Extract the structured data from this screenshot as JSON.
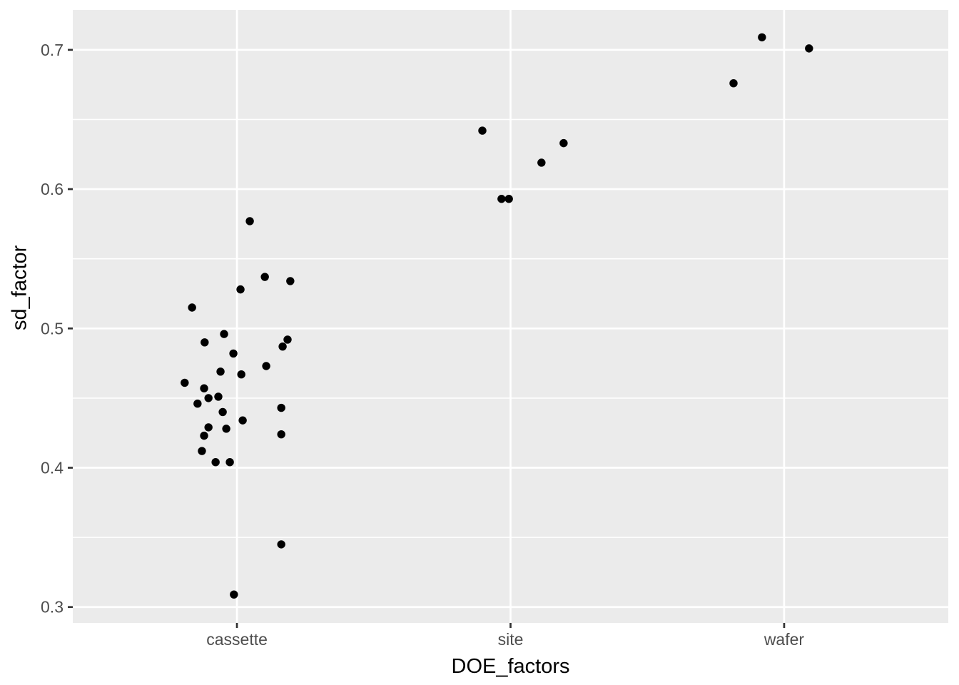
{
  "chart_data": {
    "type": "scatter",
    "title": "",
    "xlabel": "DOE_factors",
    "ylabel": "sd_factor",
    "categories": [
      "cassette",
      "site",
      "wafer"
    ],
    "category_positions": [
      1,
      2,
      3
    ],
    "x_tick_labels": [
      "cassette",
      "site",
      "wafer"
    ],
    "y_tick_labels": [
      "0.3",
      "0.4",
      "0.5",
      "0.6",
      "0.7"
    ],
    "y_ticks": [
      0.3,
      0.4,
      0.5,
      0.6,
      0.7
    ],
    "y_minor_ticks": [
      0.35,
      0.45,
      0.55,
      0.65
    ],
    "xlim": [
      0.4,
      3.6
    ],
    "ylim": [
      0.2886,
      0.7286
    ],
    "grid": true,
    "legend": "none",
    "points": [
      {
        "factor": "cassette",
        "x": 1.047,
        "sd_factor": 0.577
      },
      {
        "factor": "cassette",
        "x": 1.102,
        "sd_factor": 0.537
      },
      {
        "factor": "cassette",
        "x": 1.195,
        "sd_factor": 0.534
      },
      {
        "factor": "cassette",
        "x": 1.013,
        "sd_factor": 0.528
      },
      {
        "factor": "cassette",
        "x": 0.836,
        "sd_factor": 0.515
      },
      {
        "factor": "cassette",
        "x": 0.953,
        "sd_factor": 0.496
      },
      {
        "factor": "cassette",
        "x": 0.882,
        "sd_factor": 0.49
      },
      {
        "factor": "cassette",
        "x": 1.185,
        "sd_factor": 0.492
      },
      {
        "factor": "cassette",
        "x": 1.167,
        "sd_factor": 0.487
      },
      {
        "factor": "cassette",
        "x": 0.987,
        "sd_factor": 0.482
      },
      {
        "factor": "cassette",
        "x": 1.107,
        "sd_factor": 0.473
      },
      {
        "factor": "cassette",
        "x": 0.94,
        "sd_factor": 0.469
      },
      {
        "factor": "cassette",
        "x": 1.016,
        "sd_factor": 0.467
      },
      {
        "factor": "cassette",
        "x": 0.809,
        "sd_factor": 0.461
      },
      {
        "factor": "cassette",
        "x": 0.88,
        "sd_factor": 0.457
      },
      {
        "factor": "cassette",
        "x": 0.896,
        "sd_factor": 0.45
      },
      {
        "factor": "cassette",
        "x": 0.932,
        "sd_factor": 0.451
      },
      {
        "factor": "cassette",
        "x": 0.856,
        "sd_factor": 0.446
      },
      {
        "factor": "cassette",
        "x": 1.162,
        "sd_factor": 0.443
      },
      {
        "factor": "cassette",
        "x": 0.948,
        "sd_factor": 0.44
      },
      {
        "factor": "cassette",
        "x": 1.021,
        "sd_factor": 0.434
      },
      {
        "factor": "cassette",
        "x": 0.896,
        "sd_factor": 0.429
      },
      {
        "factor": "cassette",
        "x": 0.961,
        "sd_factor": 0.428
      },
      {
        "factor": "cassette",
        "x": 0.88,
        "sd_factor": 0.423
      },
      {
        "factor": "cassette",
        "x": 1.162,
        "sd_factor": 0.424
      },
      {
        "factor": "cassette",
        "x": 0.872,
        "sd_factor": 0.412
      },
      {
        "factor": "cassette",
        "x": 0.922,
        "sd_factor": 0.404
      },
      {
        "factor": "cassette",
        "x": 0.974,
        "sd_factor": 0.404
      },
      {
        "factor": "cassette",
        "x": 1.162,
        "sd_factor": 0.345
      },
      {
        "factor": "cassette",
        "x": 0.989,
        "sd_factor": 0.309
      },
      {
        "factor": "site",
        "x": 1.897,
        "sd_factor": 0.642
      },
      {
        "factor": "site",
        "x": 2.194,
        "sd_factor": 0.633
      },
      {
        "factor": "site",
        "x": 2.113,
        "sd_factor": 0.619
      },
      {
        "factor": "site",
        "x": 1.967,
        "sd_factor": 0.593
      },
      {
        "factor": "site",
        "x": 1.994,
        "sd_factor": 0.593
      },
      {
        "factor": "wafer",
        "x": 2.919,
        "sd_factor": 0.709
      },
      {
        "factor": "wafer",
        "x": 3.091,
        "sd_factor": 0.701
      },
      {
        "factor": "wafer",
        "x": 2.815,
        "sd_factor": 0.676
      }
    ]
  },
  "style": {
    "background": "#FFFFFF",
    "panel_bg": "#EBEBEB",
    "grid_color": "#FFFFFF",
    "point_color": "#000000",
    "tick_mark_color": "#333333",
    "axis_text_color": "#4D4D4D",
    "axis_title_color": "#000000"
  }
}
